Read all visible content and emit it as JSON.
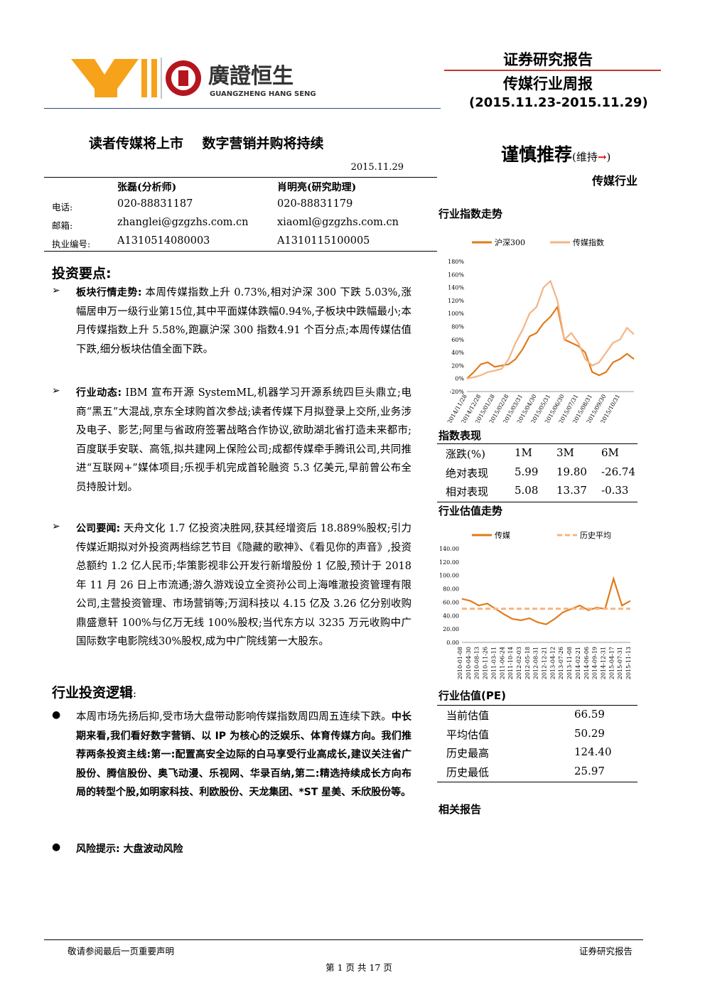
{
  "header": {
    "logo_cn": "廣證恒生",
    "logo_en": "GUANGZHENG HANG SENG",
    "doc_type": "证券研究报告",
    "report_name": "传媒行业周报",
    "period": "(2015.11.23-2015.11.29)"
  },
  "title": "读者传媒将上市    数字营销并购将持续",
  "date": "2015.11.29",
  "rating": {
    "main": "谨慎推荐",
    "note": "(维持",
    "arrow": "→",
    "close": ")",
    "industry": "传媒行业"
  },
  "contact": {
    "labels": [
      "电话:",
      "邮箱:",
      "执业编号:"
    ],
    "analysts": [
      {
        "name": "张磊(分析师)",
        "info": [
          "020-88831187",
          "zhanglei@gzgzhs.com.cn",
          "A1310514080003"
        ]
      },
      {
        "name": "肖明亮(研究助理)",
        "info": [
          "020-88831179",
          "xiaoml@gzgzhs.com.cn",
          "A1310115100005"
        ]
      }
    ]
  },
  "points": {
    "heading": "投资要点:",
    "items": [
      {
        "parts": [
          {
            "t": "板块行情走势:",
            "b": true
          },
          {
            "t": " 本周传媒指数上升 0.73%,相对沪深 300 下跌 5.03%,涨幅居申万一级行业第15位,其中平面媒体跌幅0.94%,子板块中跌幅最小;本月传媒指数上升 5.58%,跑赢沪深 300 指数4.91 个百分点;本周传媒估值下跌,细分板块估值全面下跌。",
            "b": false
          }
        ]
      },
      {
        "parts": [
          {
            "t": "行业动态:",
            "b": true
          },
          {
            "t": " IBM 宣布开源 SystemML,机器学习开源系统四巨头鼎立;电商“黑五”大混战,京东全球购首次参战;读者传媒下月拟登录上交所,业务涉及电子、影艺;阿里与省政府签署战略合作协议,欲助湖北省打造未来都市;百度联手安联、高瓴,拟共建网上保险公司;成都传媒牵手腾讯公司,共同推进“互联网+”媒体项目;乐视手机完成首轮融资 5.3 亿美元,早前曾公布全员持股计划。",
            "b": false
          }
        ]
      },
      {
        "parts": [
          {
            "t": "公司要闻:",
            "b": true
          },
          {
            "t": " 天舟文化 1.7 亿投资决胜网,获其经增资后 18.889%股权;引力传媒近期拟对外投资两档综艺节目《隐藏的歌神》、《看见你的声音》,投资总额约 1.2 亿人民币;华策影视非公开发行新增股份 1 亿股,预计于 2018 年 11 月 26 日上市流通;游久游戏设立全资孙公司上海唯澈投资管理有限公司,主营投资管理、市场营销等;万润科技以 4.15 亿及 3.26 亿分别收购鼎盛意轩 100%与亿万无线 100%股权;当代东方以 3235 万元收购中广国际数字电影院线30%股权,成为中广院线第一大股东。",
            "b": false
          }
        ]
      }
    ]
  },
  "logic": {
    "heading": "行业投资逻辑",
    "colon": ":",
    "items": [
      {
        "parts": [
          {
            "t": "本周市场先扬后抑,受市场大盘带动影响传媒指数周四周五连续下跌。",
            "b": false
          },
          {
            "t": "中长期来看,我们看好数字营销、以 IP 为核心的泛娱乐、体育传媒方向。我们推荐两条投资主线:第一:配置高安全边际的白马享受行业高成长,建议关注省广股份、腾信股份、奥飞动漫、乐视网、华录百纳,第二:精选持续成长方向布局的转型个股,如明家科技、利欧股份、天龙集团、*ST 星美、禾欣股份等。",
            "b": true
          }
        ]
      },
      {
        "parts": [
          {
            "t": "风险提示:",
            "b": true
          },
          {
            "t": " 大盘波动风险",
            "b": true
          }
        ]
      }
    ]
  },
  "index_trend": {
    "heading": "行业指数走势",
    "chart_data": {
      "type": "line",
      "categories": [
        "2014/11/28",
        null,
        "2014/12/28",
        null,
        "2015/01/28",
        null,
        "2015/02/28",
        null,
        "2015/03/31",
        null,
        "2015/04/30",
        null,
        "2015/05/31",
        null,
        "2015/06/30",
        null,
        "2015/07/31",
        null,
        "2015/08/31",
        null,
        "2015/09/30",
        null,
        "2015/10/31",
        null,
        null
      ],
      "series": [
        {
          "name": "沪深300",
          "color": "#e07b1a",
          "values": [
            0,
            10,
            22,
            25,
            18,
            20,
            22,
            30,
            45,
            65,
            70,
            85,
            95,
            110,
            60,
            55,
            50,
            40,
            10,
            5,
            10,
            25,
            30,
            38,
            30
          ]
        },
        {
          "name": "传媒指数",
          "color": "#f4b483",
          "values": [
            0,
            2,
            5,
            10,
            12,
            15,
            30,
            55,
            75,
            100,
            110,
            140,
            150,
            120,
            60,
            70,
            55,
            30,
            20,
            25,
            40,
            55,
            60,
            78,
            68
          ]
        }
      ],
      "ylim": [
        -20,
        180
      ],
      "yticks": [
        {
          "value": -20,
          "label": "-20%"
        },
        {
          "value": 0,
          "label": "0%"
        },
        {
          "value": 20,
          "label": "20%"
        },
        {
          "value": 40,
          "label": "40%"
        },
        {
          "value": 60,
          "label": "60%"
        },
        {
          "value": 80,
          "label": "80%"
        },
        {
          "value": 100,
          "label": "100%"
        },
        {
          "value": 120,
          "label": "120%"
        },
        {
          "value": 140,
          "label": "140%"
        },
        {
          "value": 160,
          "label": "160%"
        },
        {
          "value": 180,
          "label": "180%"
        }
      ],
      "legend": "top"
    }
  },
  "index_perf": {
    "heading": "指数表现",
    "columns": [
      "涨跌(%)",
      "1M",
      "3M",
      "6M"
    ],
    "rows": [
      [
        "绝对表现",
        "5.99",
        "19.80",
        "-26.74"
      ],
      [
        "相对表现",
        "5.08",
        "13.37",
        "-0.33"
      ]
    ]
  },
  "valuation_trend": {
    "heading": "行业估值走势",
    "chart_data": {
      "type": "line",
      "categories": [
        "2010-01-08",
        "2010-04-30",
        "2010-08-13",
        "2010-11-26",
        "2011-03-11",
        "2011-06-24",
        "2011-10-14",
        "2012-02-03",
        "2012-05-18",
        "2012-08-31",
        "2012-12-21",
        "2013-04-12",
        "2013-07-26",
        "2013-11-08",
        "2014-02-21",
        "2014-06-06",
        "2014-09-19",
        "2014-12-31",
        "2015-04-17",
        "2015-07-31",
        "2015-11-13"
      ],
      "series": [
        {
          "name": "传媒",
          "color": "#e07b1a",
          "values": [
            65,
            62,
            55,
            58,
            50,
            42,
            35,
            33,
            36,
            30,
            27,
            35,
            45,
            50,
            55,
            48,
            52,
            50,
            95,
            55,
            62
          ]
        },
        {
          "name": "历史平均",
          "color": "#f6b582",
          "dashed": true,
          "values": [
            50.29,
            50.29,
            50.29,
            50.29,
            50.29,
            50.29,
            50.29,
            50.29,
            50.29,
            50.29,
            50.29,
            50.29,
            50.29,
            50.29,
            50.29,
            50.29,
            50.29,
            50.29,
            50.29,
            50.29,
            50.29
          ]
        }
      ],
      "ylim": [
        0,
        140
      ],
      "yticks": [
        {
          "value": 0,
          "label": "0.00"
        },
        {
          "value": 20,
          "label": "20.00"
        },
        {
          "value": 40,
          "label": "40.00"
        },
        {
          "value": 60,
          "label": "60.00"
        },
        {
          "value": 80,
          "label": "80.00"
        },
        {
          "value": 100,
          "label": "100.00"
        },
        {
          "value": 120,
          "label": "120.00"
        },
        {
          "value": 140,
          "label": "140.00"
        }
      ],
      "legend": "top"
    }
  },
  "pe": {
    "heading": "行业估值(PE)",
    "rows": [
      [
        "当前估值",
        "66.59"
      ],
      [
        "平均估值",
        "50.29"
      ],
      [
        "历史最高",
        "124.40"
      ],
      [
        "历史最低",
        "25.97"
      ]
    ]
  },
  "related": "相关报告",
  "footer": {
    "disclaimer": "敬请参阅最后一页重要声明",
    "right": "证券研究报告",
    "page": "第 1 页 共 17 页"
  }
}
